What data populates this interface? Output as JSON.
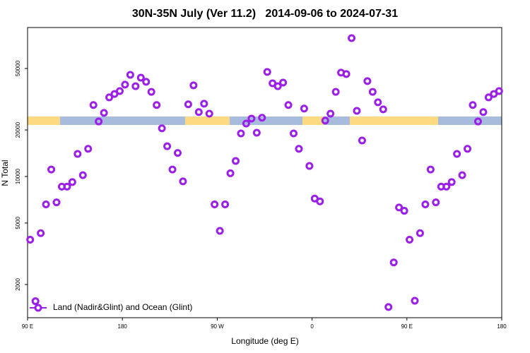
{
  "chart_data": {
    "type": "scatter",
    "title": "30N-35N July (Ver 11.2)   2014-09-06 to 2024-07-31",
    "x_label": "Longitude (deg E)",
    "y_label": "N Total",
    "log_y": true,
    "legend": "bottom-left",
    "series": [
      {
        "name": "Land (Nadir&Glint) and Ocean (Glint)",
        "color": "#9b1fe8",
        "x": [
          92.5,
          97.5,
          102.5,
          107.5,
          112.5,
          117.5,
          122.5,
          127.5,
          132.5,
          137.5,
          142.5,
          147.5,
          152.5,
          157.5,
          162.5,
          167.5,
          172.5,
          177.5,
          182.5,
          187.5,
          192.5,
          197.5,
          202.5,
          207.5,
          212.5,
          217.5,
          222.5,
          227.5,
          232.5,
          237.5,
          242.5,
          247.5,
          252.5,
          257.5,
          262.5,
          267.5,
          272.5,
          277.5,
          282.5,
          287.5,
          292.5,
          297.5,
          302.5,
          307.5,
          312.5,
          317.5,
          322.5,
          327.5,
          332.5,
          337.5,
          342.5,
          347.5,
          352.5,
          357.5,
          362.5,
          367.5,
          372.5,
          377.5,
          382.5,
          387.5,
          392.5,
          397.5,
          402.5,
          407.5,
          412.5,
          417.5,
          422.5,
          427.5,
          432.5,
          437.5,
          442.5,
          447.5,
          452.5,
          457.5,
          462.5,
          467.5,
          472.5,
          477.5,
          482.5,
          487.5,
          492.5,
          497.5,
          502.5,
          507.5,
          512.5,
          517.5,
          522.5,
          527.5,
          532.5,
          537.5
        ],
        "values": [
          3900,
          1560,
          4300,
          6600,
          11100,
          6800,
          8600,
          8600,
          9200,
          14000,
          10200,
          15100,
          29000,
          22700,
          25800,
          32500,
          34200,
          35700,
          39300,
          45500,
          38400,
          43600,
          41000,
          35300,
          29000,
          20500,
          15700,
          11100,
          14200,
          9300,
          29300,
          38900,
          26100,
          29600,
          25500,
          6600,
          4450,
          6600,
          10500,
          12600,
          19000,
          22000,
          23700,
          19200,
          24000,
          47500,
          40100,
          38400,
          40500,
          29000,
          19000,
          15100,
          27500,
          11700,
          7200,
          6900,
          23000,
          25500,
          35300,
          47000,
          46000,
          78600,
          26600,
          17100,
          41400,
          35300,
          30200,
          27200,
          1430,
          2780,
          6300,
          6000,
          3900,
          1570,
          4300,
          6600,
          11100,
          6800,
          8600,
          8600,
          9200,
          14000,
          10200,
          15100,
          29000,
          22700,
          26100,
          32500,
          34200,
          35700
        ]
      }
    ],
    "xlim": [
      90,
      540
    ],
    "xticks": [
      {
        "value": 90,
        "label": "90 E"
      },
      {
        "value": 180,
        "label": "180"
      },
      {
        "value": 270,
        "label": "90 W"
      },
      {
        "value": 360,
        "label": "0"
      },
      {
        "value": 450,
        "label": "90 E"
      },
      {
        "value": 540,
        "label": "180"
      }
    ],
    "ylim": [
      1220,
      92000
    ],
    "yticks": [
      2000,
      5000,
      10000,
      20000,
      50000
    ]
  }
}
